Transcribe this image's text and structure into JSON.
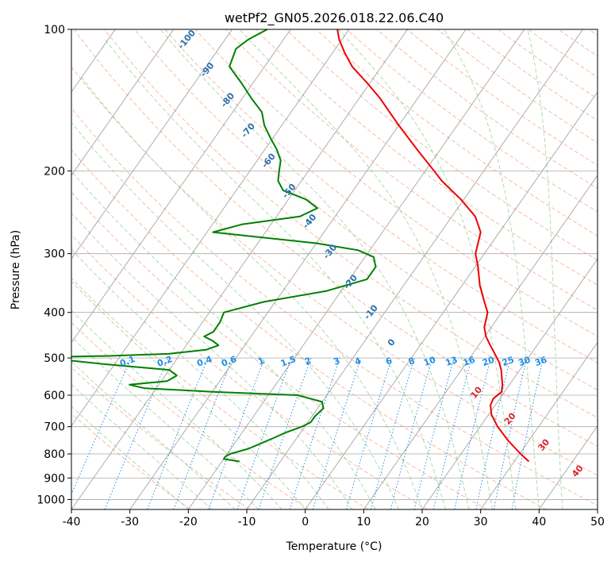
{
  "chart_data": {
    "type": "line",
    "subtype": "skew-t log-p diagram",
    "title": "wetPf2_GN05.2026.018.22.06.C40",
    "xlabel": "Temperature (°C)",
    "ylabel": "Pressure (hPa)",
    "xlim": [
      -40,
      50
    ],
    "ylim": [
      1050,
      100
    ],
    "y_scale": "log",
    "x_ticks": [
      -40,
      -30,
      -20,
      -10,
      0,
      10,
      20,
      30,
      40,
      50
    ],
    "y_ticks": [
      100,
      200,
      300,
      400,
      500,
      600,
      700,
      800,
      900,
      1000
    ],
    "grid": true,
    "colors": {
      "temperature": "#ee0000",
      "dewpoint": "#008000",
      "isotherm": "#888888",
      "dry_adiabat": "#f4a582",
      "moist_adiabat": "#9fd09f",
      "mixing_ratio": "#1f8fe5",
      "theta_labels": "#2a6fa8",
      "moist_labels": "#d62728",
      "ice_label": "#777777"
    },
    "series": [
      {
        "key": "temperature",
        "pressure": [
          830,
          800,
          750,
          700,
          660,
          630,
          610,
          590,
          570,
          550,
          530,
          510,
          490,
          470,
          450,
          430,
          400,
          380,
          350,
          320,
          300,
          270,
          250,
          230,
          210,
          200,
          180,
          160,
          140,
          130,
          120,
          112,
          105,
          100
        ],
        "values": [
          32.5,
          30.2,
          26.5,
          23.0,
          20.5,
          19.2,
          18.9,
          19.5,
          18.8,
          17.8,
          16.8,
          15.5,
          13.8,
          12.0,
          10.2,
          8.8,
          7.6,
          5.8,
          3.0,
          0.5,
          -1.5,
          -3.2,
          -6.0,
          -10.5,
          -16.0,
          -18.5,
          -24.0,
          -30.0,
          -36.5,
          -40.5,
          -45.0,
          -48.0,
          -50.5,
          -52.0
        ]
      },
      {
        "key": "dewpoint",
        "pressure": [
          830,
          820,
          810,
          800,
          780,
          760,
          740,
          720,
          700,
          685,
          665,
          640,
          620,
          600,
          590,
          580,
          570,
          560,
          545,
          530,
          515,
          505,
          500,
          495,
          490,
          480,
          470,
          460,
          450,
          440,
          420,
          400,
          380,
          360,
          340,
          320,
          305,
          295,
          285,
          270,
          260,
          250,
          240,
          230,
          220,
          210,
          200,
          190,
          180,
          170,
          160,
          150,
          140,
          130,
          120,
          110,
          105,
          100
        ],
        "values": [
          -17.0,
          -20.0,
          -20.0,
          -19.5,
          -17.0,
          -15.5,
          -14.0,
          -12.5,
          -10.5,
          -9.5,
          -9.5,
          -9.0,
          -10.0,
          -15.0,
          -30.0,
          -42.0,
          -45.0,
          -39.0,
          -38.0,
          -40.0,
          -52.0,
          -59.0,
          -70.0,
          -52.0,
          -42.0,
          -36.0,
          -34.5,
          -36.0,
          -38.0,
          -37.0,
          -37.0,
          -37.5,
          -32.0,
          -22.5,
          -17.0,
          -17.0,
          -18.5,
          -22.0,
          -30.0,
          -49.0,
          -45.0,
          -36.0,
          -34.0,
          -37.0,
          -42.0,
          -44.0,
          -45.0,
          -46.0,
          -48.0,
          -50.5,
          -53.0,
          -55.0,
          -58.5,
          -62.0,
          -66.0,
          -67.0,
          -66.0,
          -64.0
        ]
      }
    ],
    "dry_adiabat_labels": [
      "-100",
      "-90",
      "-80",
      "-70",
      "-60",
      "-50",
      "-40",
      "-30",
      "-20",
      "-10",
      "0"
    ],
    "dry_adiabat_label_values": [
      -100,
      -90,
      -80,
      -70,
      -60,
      -50,
      -40,
      -30,
      -20,
      -10,
      0
    ],
    "moist_adiabat_labels": [
      "10",
      "20",
      "30",
      "40"
    ],
    "moist_adiabat_label_values": [
      10,
      20,
      30,
      40
    ],
    "mixing_ratio_labels": [
      "0.1",
      "0.2",
      "0.4",
      "0.6",
      "1",
      "1.5",
      "2",
      "3",
      "4",
      "6",
      "8",
      "10",
      "13",
      "16",
      "20",
      "25",
      "30",
      "36"
    ],
    "mixing_ratio_values": [
      0.1,
      0.2,
      0.4,
      0.6,
      1,
      1.5,
      2,
      3,
      4,
      6,
      8,
      10,
      13,
      16,
      20,
      25,
      30,
      36
    ]
  }
}
